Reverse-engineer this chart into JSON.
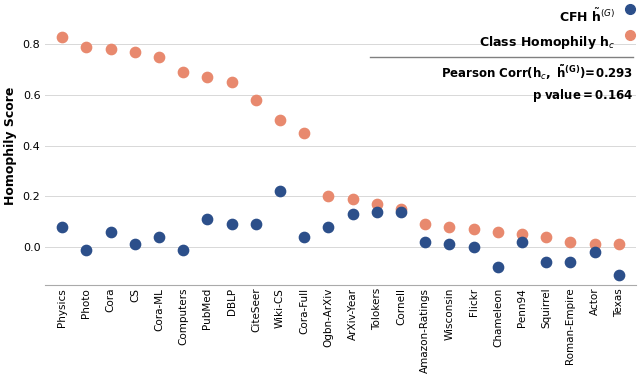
{
  "datasets": [
    "Physics",
    "Photo",
    "Cora",
    "CS",
    "Cora-ML",
    "Computers",
    "PubMed",
    "DBLP",
    "CiteSeer",
    "Wiki-CS",
    "Cora-Full",
    "Ogbn-ArXiv",
    "ArXiv-Year",
    "Tolokers",
    "Cornell",
    "Amazon-Ratings",
    "Wisconsin",
    "Flickr",
    "Chameleon",
    "Penn94",
    "Squirrel",
    "Roman-Empire",
    "Actor",
    "Texas"
  ],
  "cfh": [
    0.08,
    -0.01,
    0.06,
    0.01,
    0.04,
    -0.01,
    0.11,
    0.09,
    0.09,
    0.22,
    0.04,
    0.08,
    0.13,
    0.14,
    0.14,
    0.02,
    0.01,
    0.0,
    -0.08,
    0.02,
    -0.06,
    -0.06,
    -0.02,
    -0.11
  ],
  "class_homophily": [
    0.83,
    0.79,
    0.78,
    0.77,
    0.75,
    0.69,
    0.67,
    0.65,
    0.58,
    0.5,
    0.45,
    0.2,
    0.19,
    0.17,
    0.15,
    0.09,
    0.08,
    0.07,
    0.06,
    0.05,
    0.04,
    0.02,
    0.01,
    0.01
  ],
  "cfh_color": "#2c4f8a",
  "ch_color": "#e8896e",
  "ylabel": "Homophily Score",
  "ylim": [
    -0.15,
    0.95
  ],
  "yticks": [
    0.0,
    0.2,
    0.4,
    0.6,
    0.8
  ],
  "pearson_corr": "0.293",
  "p_value": "0.164",
  "grid_color": "#d8d8d8",
  "marker_size": 55,
  "tick_fontsize": 7.5,
  "ylabel_fontsize": 9
}
